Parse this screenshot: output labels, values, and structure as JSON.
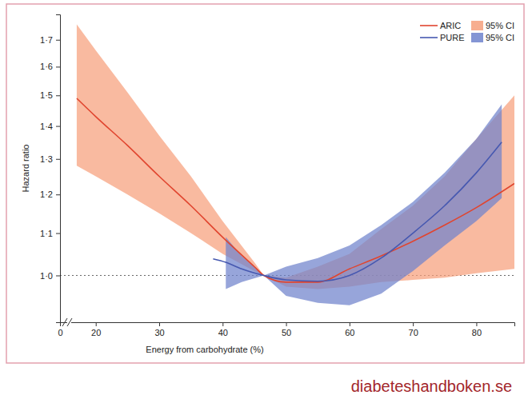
{
  "chart_data": {
    "type": "line",
    "x_label": "Energy from carbohydrate (%)",
    "y_label": "Hazard ratio",
    "source": "diabeteshandboken.se",
    "xlim": [
      0,
      86
    ],
    "xticks": [
      0,
      20,
      30,
      40,
      50,
      60,
      70,
      80
    ],
    "ylim": [
      0.9,
      1.8
    ],
    "log": "y",
    "yticks": [
      {
        "value": 1.0,
        "label": "1·0"
      },
      {
        "value": 1.1,
        "label": "1·1"
      },
      {
        "value": 1.2,
        "label": "1·2"
      },
      {
        "value": 1.3,
        "label": "1·3"
      },
      {
        "value": 1.4,
        "label": "1·4"
      },
      {
        "value": 1.5,
        "label": "1·5"
      },
      {
        "value": 1.6,
        "label": "1·6"
      },
      {
        "value": 1.7,
        "label": "1·7"
      }
    ],
    "reference_line": 1.0,
    "legend": "upper right",
    "series": [
      {
        "name": "ARIC",
        "color": "#e0452f",
        "ci_name": "95% CI",
        "ci_color": "#f6a07c",
        "x": [
          17,
          20,
          25,
          30,
          35,
          40,
          45,
          46.5,
          50,
          55,
          60,
          65,
          70,
          75,
          80,
          86
        ],
        "values": [
          1.49,
          1.43,
          1.34,
          1.25,
          1.17,
          1.09,
          1.02,
          1.0,
          0.985,
          0.985,
          1.015,
          1.045,
          1.08,
          1.12,
          1.165,
          1.23
        ],
        "lower": [
          1.28,
          1.25,
          1.2,
          1.15,
          1.1,
          1.05,
          1.01,
          1.0,
          0.975,
          0.97,
          0.975,
          0.985,
          0.99,
          0.995,
          1.005,
          1.015
        ],
        "upper": [
          1.76,
          1.66,
          1.51,
          1.37,
          1.25,
          1.13,
          1.03,
          1.0,
          0.995,
          1.02,
          1.05,
          1.11,
          1.17,
          1.25,
          1.36,
          1.5
        ]
      },
      {
        "name": "PURE",
        "color": "#4658b0",
        "ci_name": "95% CI",
        "ci_color": "#6f82cc",
        "x": [
          38.5,
          40.5,
          43,
          46.5,
          50,
          55,
          60,
          65,
          70,
          75,
          80,
          84
        ],
        "values": [
          1.038,
          1.03,
          1.015,
          1.0,
          0.99,
          0.987,
          1.0,
          1.04,
          1.1,
          1.17,
          1.26,
          1.35
        ],
        "lower": [
          null,
          0.97,
          0.985,
          1.0,
          0.955,
          0.94,
          0.935,
          0.96,
          1.01,
          1.07,
          1.13,
          1.19
        ],
        "upper": [
          null,
          1.09,
          1.045,
          1.0,
          1.02,
          1.04,
          1.07,
          1.12,
          1.18,
          1.26,
          1.36,
          1.47
        ]
      }
    ]
  }
}
